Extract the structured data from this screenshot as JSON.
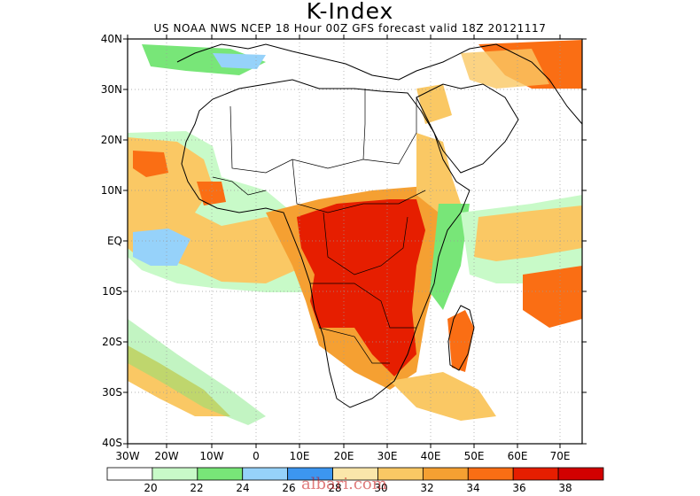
{
  "header": {
    "title": "K-Index",
    "subtitle": "US NOAA NWS NCEP 18 Hour 00Z GFS forecast valid 18Z 20121117"
  },
  "axes": {
    "lat_labels": [
      "40N",
      "30N",
      "20N",
      "10N",
      "EQ",
      "10S",
      "20S",
      "30S",
      "40S"
    ],
    "lon_labels": [
      "30W",
      "20W",
      "10W",
      "0",
      "10E",
      "20E",
      "30E",
      "40E",
      "50E",
      "60E",
      "70E"
    ]
  },
  "colorbar": {
    "labels": [
      "20",
      "22",
      "24",
      "26",
      "28",
      "30",
      "32",
      "34",
      "36",
      "38"
    ],
    "colors": [
      "#ffffff",
      "#c8fac8",
      "#78e678",
      "#96d2fa",
      "#3c96f0",
      "#fae6aa",
      "#fac864",
      "#f5a032",
      "#fa6e14",
      "#e61e00",
      "#d20000"
    ]
  },
  "watermark": "albari.com",
  "map_colors": {
    "green_light": "#c8fac8",
    "green": "#78e678",
    "blue_light": "#96d2fa",
    "blue": "#3c96f0",
    "yellow": "#fae6aa",
    "orange_light": "#fac864",
    "orange": "#f5a032",
    "red_orange": "#fa6e14",
    "red": "#e61e00"
  }
}
